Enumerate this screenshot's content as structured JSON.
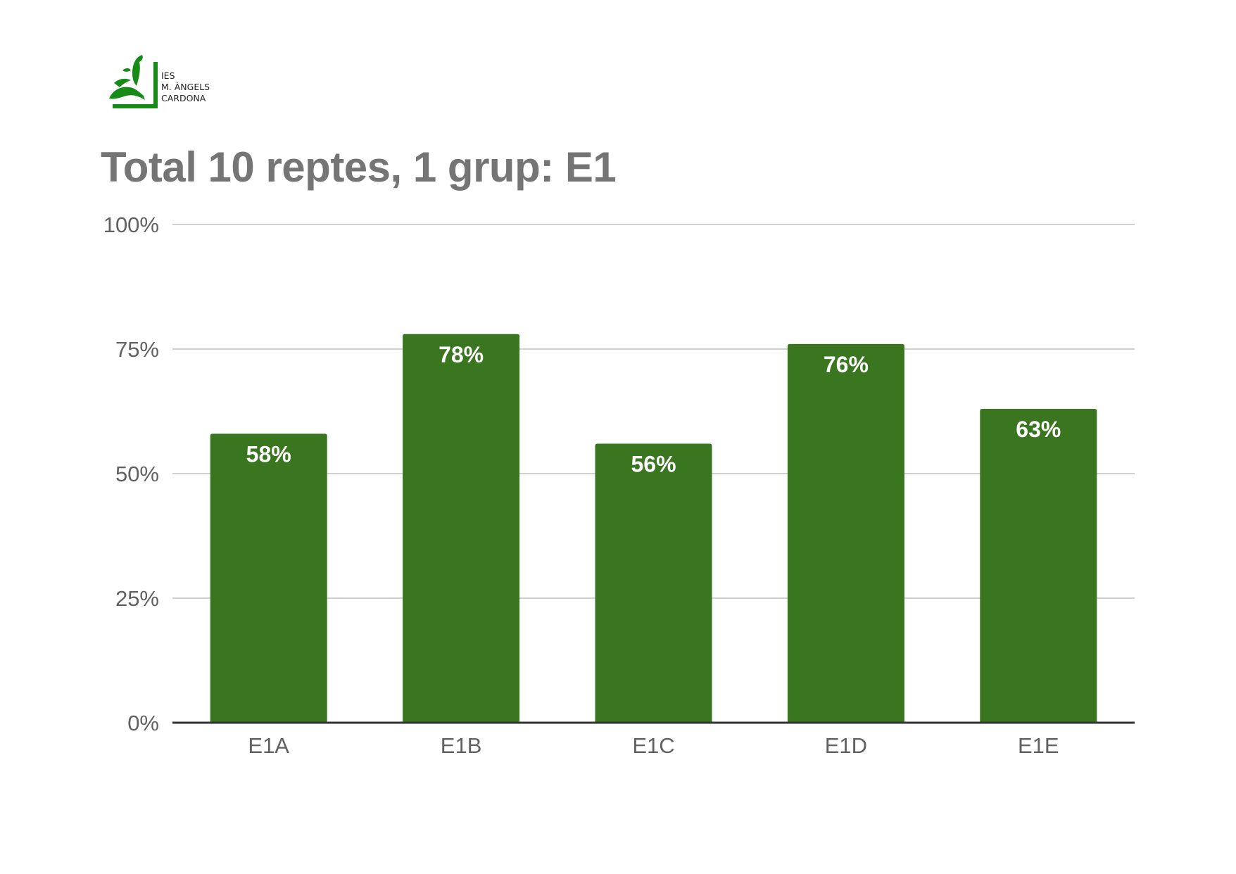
{
  "logo": {
    "lines": [
      "IES",
      "M. ÀNGELS",
      "CARDONA"
    ],
    "color": "#178a17"
  },
  "chart_data": {
    "type": "bar",
    "title": "Total 10 reptes, 1 grup: E1",
    "xlabel": "",
    "ylabel": "",
    "categories": [
      "E1A",
      "E1B",
      "E1C",
      "E1D",
      "E1E"
    ],
    "values": [
      58,
      78,
      56,
      76,
      63
    ],
    "data_labels": [
      "58%",
      "78%",
      "56%",
      "76%",
      "63%"
    ],
    "ylim": [
      0,
      100
    ],
    "yticks": [
      0,
      25,
      50,
      75,
      100
    ],
    "ytick_labels": [
      "0%",
      "25%",
      "50%",
      "75%",
      "100%"
    ],
    "grid": true,
    "legend": "none",
    "bar_color": "#3a7520",
    "grid_color": "#d0d0d0",
    "baseline_color": "#333333"
  }
}
